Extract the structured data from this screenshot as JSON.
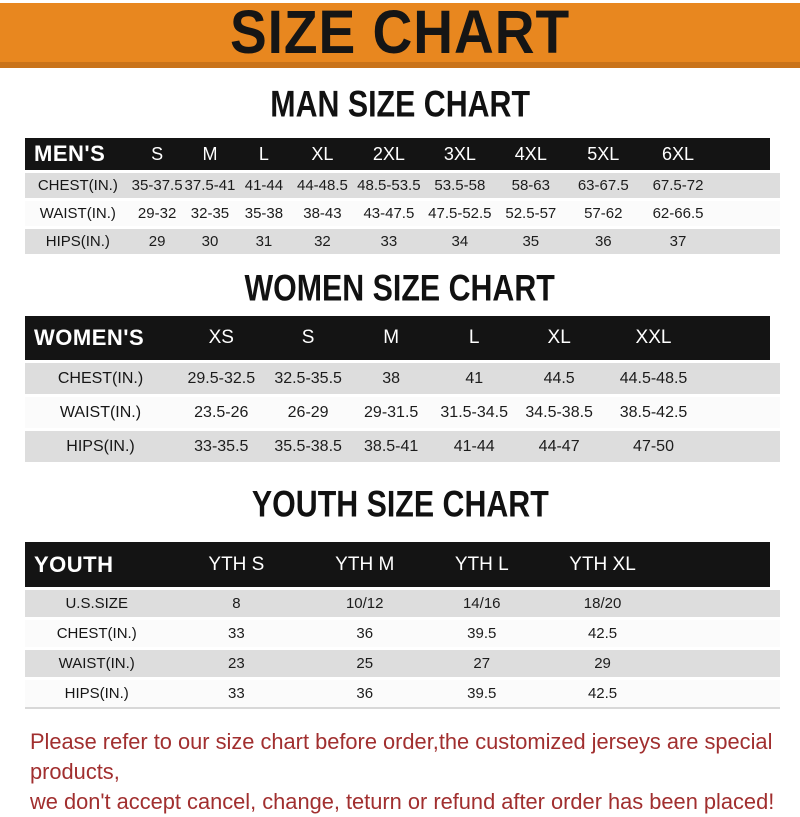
{
  "banner": {
    "title": "SIZE CHART"
  },
  "sections": [
    {
      "heading": "MAN SIZE CHART",
      "header_label": "MEN'S",
      "columns": [
        "S",
        "M",
        "L",
        "XL",
        "2XL",
        "3XL",
        "4XL",
        "5XL",
        "6XL"
      ],
      "rows": [
        {
          "label": "CHEST(IN.)",
          "values": [
            "35-37.5",
            "37.5-41",
            "41-44",
            "44-48.5",
            "48.5-53.5",
            "53.5-58",
            "58-63",
            "63-67.5",
            "67.5-72"
          ]
        },
        {
          "label": "WAIST(IN.)",
          "values": [
            "29-32",
            "32-35",
            "35-38",
            "38-43",
            "43-47.5",
            "47.5-52.5",
            "52.5-57",
            "57-62",
            "62-66.5"
          ]
        },
        {
          "label": "HIPS(IN.)",
          "values": [
            "29",
            "30",
            "31",
            "32",
            "33",
            "34",
            "35",
            "36",
            "37"
          ]
        }
      ]
    },
    {
      "heading": "WOMEN SIZE CHART",
      "header_label": "WOMEN'S",
      "columns": [
        "XS",
        "S",
        "M",
        "L",
        "XL",
        "XXL"
      ],
      "rows": [
        {
          "label": "CHEST(IN.)",
          "values": [
            "29.5-32.5",
            "32.5-35.5",
            "38",
            "41",
            "44.5",
            "44.5-48.5"
          ]
        },
        {
          "label": "WAIST(IN.)",
          "values": [
            "23.5-26",
            "26-29",
            "29-31.5",
            "31.5-34.5",
            "34.5-38.5",
            "38.5-42.5"
          ]
        },
        {
          "label": "HIPS(IN.)",
          "values": [
            "33-35.5",
            "35.5-38.5",
            "38.5-41",
            "41-44",
            "44-47",
            "47-50"
          ]
        }
      ]
    },
    {
      "heading": "YOUTH SIZE CHART",
      "header_label": "YOUTH",
      "columns": [
        "YTH S",
        "YTH M",
        "YTH L",
        "YTH XL"
      ],
      "rows": [
        {
          "label": "U.S.SIZE",
          "values": [
            "8",
            "10/12",
            "14/16",
            "18/20"
          ]
        },
        {
          "label": "CHEST(IN.)",
          "values": [
            "33",
            "36",
            "39.5",
            "42.5"
          ]
        },
        {
          "label": "WAIST(IN.)",
          "values": [
            "23",
            "25",
            "27",
            "29"
          ]
        },
        {
          "label": "HIPS(IN.)",
          "values": [
            "33",
            "36",
            "39.5",
            "42.5"
          ]
        }
      ]
    }
  ],
  "footer": {
    "line1": "Please refer to our size chart before order,the customized jerseys are special products,",
    "line2": "we don't accept cancel, change, teturn or refund after order has been placed!"
  },
  "colors": {
    "banner_orange": "#E8871F",
    "banner_orange_dark": "#C9731A",
    "header_bar_black": "#141414",
    "row_gray": "#DDDDDD",
    "row_white": "#FBFBFB",
    "footer_red": "#A12F2F"
  }
}
